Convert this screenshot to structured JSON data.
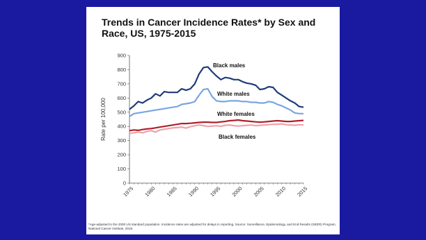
{
  "chart_data": {
    "type": "line",
    "title": "Trends in Cancer Incidence Rates* by Sex and Race, US, 1975-2015",
    "ylabel": "Rate per 100,000",
    "xlabel": "",
    "ylim": [
      0,
      900
    ],
    "yticks": [
      0,
      100,
      200,
      300,
      400,
      500,
      600,
      700,
      800,
      900
    ],
    "xlim": [
      1975,
      2015
    ],
    "xticks": [
      1975,
      1980,
      1985,
      1990,
      1995,
      2000,
      2005,
      2010,
      2015
    ],
    "grid": false,
    "x": [
      1975,
      1976,
      1977,
      1978,
      1979,
      1980,
      1981,
      1982,
      1983,
      1984,
      1985,
      1986,
      1987,
      1988,
      1989,
      1990,
      1991,
      1992,
      1993,
      1994,
      1995,
      1996,
      1997,
      1998,
      1999,
      2000,
      2001,
      2002,
      2003,
      2004,
      2005,
      2006,
      2007,
      2008,
      2009,
      2010,
      2011,
      2012,
      2013,
      2014,
      2015
    ],
    "series": [
      {
        "name": "Black males",
        "color": "#1f3a7a",
        "values": [
          520,
          545,
          575,
          565,
          585,
          600,
          630,
          615,
          645,
          640,
          640,
          640,
          665,
          655,
          665,
          700,
          770,
          815,
          820,
          785,
          755,
          730,
          745,
          740,
          730,
          730,
          715,
          705,
          700,
          690,
          660,
          665,
          680,
          675,
          640,
          620,
          600,
          580,
          565,
          540,
          535
        ]
      },
      {
        "name": "White males",
        "color": "#7aa6e0",
        "values": [
          470,
          490,
          495,
          500,
          505,
          510,
          515,
          520,
          525,
          530,
          535,
          540,
          555,
          560,
          565,
          575,
          620,
          660,
          665,
          610,
          580,
          575,
          575,
          580,
          580,
          580,
          575,
          575,
          570,
          570,
          565,
          565,
          575,
          570,
          555,
          545,
          530,
          515,
          495,
          490,
          490
        ]
      },
      {
        "name": "White females",
        "color": "#b0202a",
        "values": [
          370,
          375,
          372,
          378,
          382,
          385,
          390,
          395,
          400,
          405,
          410,
          415,
          420,
          420,
          422,
          425,
          428,
          430,
          430,
          428,
          428,
          432,
          435,
          440,
          442,
          445,
          440,
          438,
          435,
          432,
          430,
          432,
          435,
          438,
          440,
          438,
          435,
          435,
          438,
          440,
          442
        ]
      },
      {
        "name": "Black females",
        "color": "#f0a0a8",
        "values": [
          350,
          355,
          360,
          355,
          365,
          370,
          360,
          375,
          380,
          385,
          390,
          392,
          395,
          388,
          398,
          405,
          410,
          405,
          400,
          402,
          405,
          400,
          408,
          410,
          405,
          402,
          405,
          408,
          410,
          405,
          408,
          410,
          412,
          415,
          415,
          418,
          412,
          410,
          408,
          412,
          410
        ]
      }
    ]
  },
  "footnote": "*Age-adjusted to the 2000 US standard population. Incidence rates are adjusted for delays in reporting. Source: Surveillance, Epidemiology, and End Results (SEER) Program, National Cancer Institute, 2018."
}
